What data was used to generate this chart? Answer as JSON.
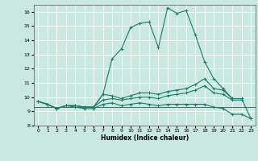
{
  "title": "",
  "xlabel": "Humidex (Indice chaleur)",
  "ylabel": "",
  "xlim": [
    -0.5,
    23.5
  ],
  "ylim": [
    8,
    16.5
  ],
  "xticks": [
    0,
    1,
    2,
    3,
    4,
    5,
    6,
    7,
    8,
    9,
    10,
    11,
    12,
    13,
    14,
    15,
    16,
    17,
    18,
    19,
    20,
    21,
    22,
    23
  ],
  "yticks": [
    8,
    9,
    10,
    11,
    12,
    13,
    14,
    15,
    16
  ],
  "bg_color": "#c8e8e0",
  "line_color": "#1a7a6a",
  "grid_color": "#ffffff",
  "red_line_y": 9.3,
  "red_line_color": "#cc3333",
  "lines": [
    {
      "x": [
        0,
        1,
        2,
        3,
        4,
        5,
        6,
        7,
        8,
        9,
        10,
        11,
        12,
        13,
        14,
        15,
        16,
        17,
        18,
        19,
        20,
        21,
        22
      ],
      "y": [
        9.7,
        9.5,
        9.2,
        9.4,
        9.4,
        9.3,
        9.3,
        10.2,
        10.1,
        9.9,
        10.1,
        10.3,
        10.3,
        10.2,
        10.4,
        10.5,
        10.6,
        10.9,
        11.3,
        10.6,
        10.5,
        9.9,
        9.9
      ]
    },
    {
      "x": [
        0,
        1,
        2,
        3,
        4,
        5,
        6,
        7,
        8,
        9,
        10,
        11,
        12,
        13,
        14,
        15,
        16,
        17,
        18,
        19,
        20,
        21,
        22
      ],
      "y": [
        9.7,
        9.5,
        9.2,
        9.4,
        9.4,
        9.3,
        9.3,
        9.8,
        9.9,
        9.8,
        9.9,
        10.0,
        10.0,
        9.9,
        10.1,
        10.2,
        10.3,
        10.5,
        10.8,
        10.3,
        10.2,
        9.8,
        9.8
      ]
    },
    {
      "x": [
        0,
        1,
        2,
        3,
        4,
        5,
        6,
        7,
        8,
        9,
        10,
        11,
        12,
        13,
        14,
        15,
        16,
        17,
        18,
        19,
        20,
        21,
        22,
        23
      ],
      "y": [
        9.7,
        9.5,
        9.2,
        9.4,
        9.3,
        9.2,
        9.2,
        9.5,
        9.6,
        9.4,
        9.5,
        9.6,
        9.5,
        9.4,
        9.5,
        9.5,
        9.5,
        9.5,
        9.5,
        9.3,
        9.2,
        8.8,
        8.8,
        8.5
      ]
    },
    {
      "x": [
        0,
        1,
        2,
        3,
        4,
        5,
        6,
        7,
        8,
        9,
        10,
        11,
        12,
        13,
        14,
        15,
        16,
        17,
        18,
        19,
        20,
        21,
        22,
        23
      ],
      "y": [
        9.7,
        9.5,
        9.2,
        9.4,
        9.4,
        9.3,
        9.3,
        10.2,
        12.7,
        13.4,
        14.9,
        15.2,
        15.3,
        13.5,
        16.3,
        15.9,
        16.1,
        14.4,
        12.5,
        11.3,
        10.6,
        9.9,
        9.9,
        8.5
      ]
    }
  ]
}
